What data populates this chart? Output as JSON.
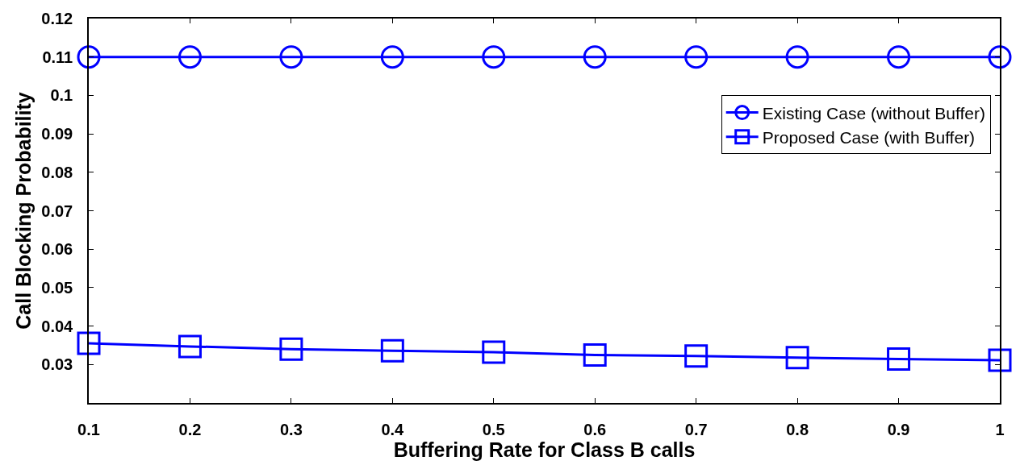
{
  "chart_data": {
    "type": "line",
    "xlabel": "Buffering Rate for Class B calls",
    "ylabel": "Call Blocking Probability",
    "x": [
      0.1,
      0.2,
      0.3,
      0.4,
      0.5,
      0.6,
      0.7,
      0.8,
      0.9,
      1
    ],
    "series": [
      {
        "name": "Existing Case (without Buffer)",
        "color": "#0000ff",
        "marker": "circle",
        "values": [
          0.11,
          0.11,
          0.11,
          0.11,
          0.11,
          0.11,
          0.11,
          0.11,
          0.11,
          0.11
        ]
      },
      {
        "name": "Proposed Case (with Buffer)",
        "color": "#0000ff",
        "marker": "square",
        "values": [
          0.0355,
          0.0347,
          0.034,
          0.0336,
          0.0332,
          0.0325,
          0.0322,
          0.0318,
          0.0314,
          0.0311
        ]
      }
    ],
    "xlim": [
      0.1,
      1
    ],
    "xticks": [
      0.1,
      0.2,
      0.3,
      0.4,
      0.5,
      0.6,
      0.7,
      0.8,
      0.9,
      1
    ],
    "ylim": [
      0.02,
      0.12
    ],
    "yticks": [
      0.03,
      0.04,
      0.05,
      0.06,
      0.07,
      0.08,
      0.09,
      0.1,
      0.11,
      0.12
    ],
    "legend": "top right",
    "line_style": "solid"
  }
}
